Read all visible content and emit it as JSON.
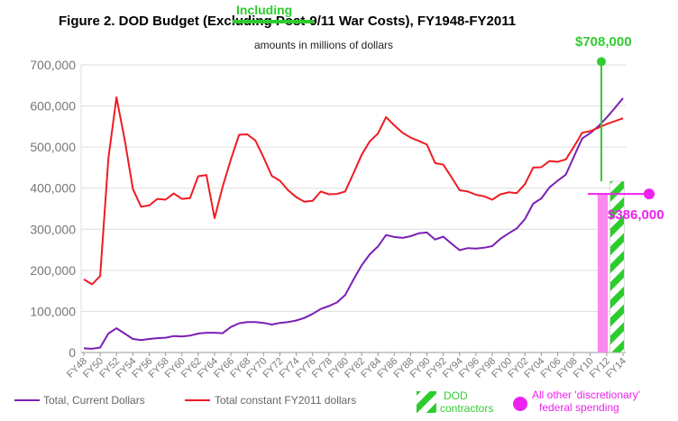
{
  "chart_data": {
    "type": "line",
    "title_prefix": "Figure 2. DOD Budget (",
    "title_struck": "Excluding",
    "title_suffix": " Post-9/11 War Costs), FY1948-FY2011",
    "title_correction": "Including",
    "subtitle": "amounts in millions of dollars",
    "ylim": [
      0,
      700000
    ],
    "yticks": [
      "0",
      "100,000",
      "200,000",
      "300,000",
      "400,000",
      "500,000",
      "600,000",
      "700,000"
    ],
    "grid": true,
    "legend_position": "bottom",
    "x": [
      "FY48",
      "FY49",
      "FY50",
      "FY51",
      "FY52",
      "FY53",
      "FY54",
      "FY55",
      "FY56",
      "FY57",
      "FY58",
      "FY59",
      "FY60",
      "FY61",
      "FY62",
      "FY63",
      "FY64",
      "FY65",
      "FY66",
      "FY67",
      "FY68",
      "FY69",
      "FY70",
      "FY71",
      "FY72",
      "FY73",
      "FY74",
      "FY75",
      "FY76",
      "FY77",
      "FY78",
      "FY79",
      "FY80",
      "FY81",
      "FY82",
      "FY83",
      "FY84",
      "FY85",
      "FY86",
      "FY87",
      "FY88",
      "FY89",
      "FY90",
      "FY91",
      "FY92",
      "FY93",
      "FY94",
      "FY95",
      "FY96",
      "FY97",
      "FY98",
      "FY99",
      "FY00",
      "FY01",
      "FY02",
      "FY03",
      "FY04",
      "FY05",
      "FY06",
      "FY07",
      "FY08",
      "FY09",
      "FY10",
      "FY11",
      "FY12",
      "FY13",
      "FY14"
    ],
    "x_tick_labels": [
      "FY48",
      "FY50",
      "FY52",
      "FY54",
      "FY56",
      "FY58",
      "FY60",
      "FY62",
      "FY64",
      "FY66",
      "FY68",
      "FY70",
      "FY72",
      "FY74",
      "FY76",
      "FY78",
      "FY80",
      "FY82",
      "FY84",
      "FY86",
      "FY88",
      "FY90",
      "FY92",
      "FY94",
      "FY96",
      "FY98",
      "FY00",
      "FY02",
      "FY04",
      "FY06",
      "FY08",
      "FY10",
      "FY12",
      "FY14"
    ],
    "series": [
      {
        "name": "Total, Current Dollars",
        "color": "#7b1fb5",
        "values": [
          10000,
          9000,
          12000,
          46000,
          59000,
          46000,
          33000,
          30000,
          33000,
          35000,
          36000,
          40000,
          39000,
          41000,
          46000,
          48000,
          48000,
          47000,
          62000,
          71000,
          74000,
          74000,
          72000,
          68000,
          72000,
          74000,
          78000,
          84000,
          94000,
          106000,
          113000,
          122000,
          140000,
          177000,
          212000,
          239000,
          258000,
          286000,
          281000,
          279000,
          283000,
          290000,
          292000,
          275000,
          282000,
          265000,
          249000,
          254000,
          253000,
          255000,
          259000,
          277000,
          290000,
          302000,
          325000,
          362000,
          375000,
          402000,
          418000,
          433000,
          477000,
          521000,
          534000,
          551000,
          572000,
          595000,
          619000
        ]
      },
      {
        "name": "Total constant FY2011 dollars",
        "color": "#ee1c24",
        "values": [
          178000,
          166000,
          186000,
          472000,
          621000,
          518000,
          398000,
          355000,
          358000,
          374000,
          372000,
          387000,
          374000,
          376000,
          429000,
          432000,
          327000,
          404000,
          470000,
          530000,
          531000,
          516000,
          475000,
          430000,
          418000,
          395000,
          378000,
          367000,
          369000,
          392000,
          385000,
          386000,
          392000,
          436000,
          481000,
          514000,
          533000,
          573000,
          553000,
          535000,
          523000,
          515000,
          506000,
          461000,
          457000,
          427000,
          395000,
          392000,
          384000,
          380000,
          372000,
          385000,
          390000,
          388000,
          410000,
          450000,
          451000,
          466000,
          464000,
          470000,
          501000,
          535000,
          539000,
          547000,
          556000,
          563000,
          570000
        ]
      }
    ],
    "annotations": [
      {
        "label": "$708,000",
        "value": 708000,
        "color": "#33cc33"
      },
      {
        "label": "$386,000",
        "value": 386000,
        "color": "#ee22ee"
      }
    ],
    "legend_extra": [
      {
        "name": "DOD contractors",
        "line1": "DOD",
        "line2": "contractors",
        "color": "#33cc33"
      },
      {
        "name": "All other 'discretionary' federal spending",
        "line1": "All other 'discretionary'",
        "line2": "federal spending",
        "color": "#ee22ee"
      }
    ]
  }
}
